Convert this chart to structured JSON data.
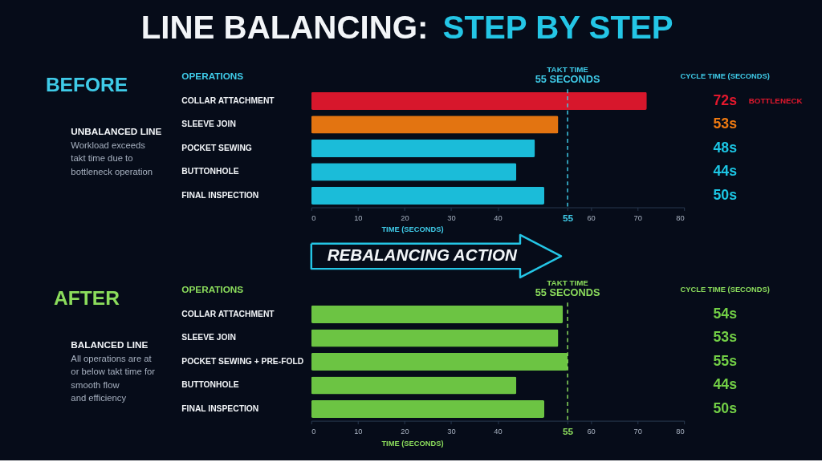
{
  "chart_data": [
    {
      "type": "other",
      "title": "LINE BALANCING: STEP BY STEP"
    },
    {
      "type": "bar",
      "orientation": "horizontal",
      "title": "BEFORE",
      "ylabel": "OPERATIONS",
      "xlabel": "TIME (SECONDS)",
      "categories": [
        "COLLAR ATTACHMENT",
        "SLEEVE JOIN",
        "POCKET SEWING",
        "BUTTONHOLE",
        "FINAL INSPECTION"
      ],
      "values": [
        72,
        53,
        48,
        44,
        50
      ],
      "colors": [
        "#e3182d",
        "#ef7a11",
        "#1cc6e4",
        "#1cc6e4",
        "#1cc6e4"
      ],
      "value_labels": [
        "72s",
        "53s",
        "48s",
        "44s",
        "50s"
      ],
      "xlim": [
        0,
        80
      ],
      "xticks": [
        0,
        10,
        20,
        30,
        40,
        55,
        60,
        70,
        80
      ],
      "ref_lines": [
        {
          "axis": "x",
          "value": 55,
          "label": "TAKT TIME\n55 SECONDS",
          "color": "#3fcbe8",
          "line_style": "dashed"
        }
      ],
      "annotations": [
        "UNBALANCED LINE",
        "Workload exceeds\ntakt time due to\nbottleneck operation",
        "CYCLE TIME (SECONDS)",
        "BOTTLENECK"
      ]
    },
    {
      "type": "other",
      "title": "REBALANCING ACTION"
    },
    {
      "type": "bar",
      "orientation": "horizontal",
      "title": "AFTER",
      "ylabel": "OPERATIONS",
      "xlabel": "TIME (SECONDS)",
      "categories": [
        "COLLAR ATTACHMENT",
        "SLEEVE JOIN",
        "POCKET SEWING + PRE-FOLD",
        "BUTTONHOLE",
        "FINAL INSPECTION"
      ],
      "values": [
        54,
        53,
        55,
        44,
        50
      ],
      "colors": [
        "#72cf46",
        "#72cf46",
        "#72cf46",
        "#72cf46",
        "#72cf46"
      ],
      "value_labels": [
        "54s",
        "53s",
        "55s",
        "44s",
        "50s"
      ],
      "xlim": [
        0,
        80
      ],
      "xticks": [
        0,
        10,
        20,
        30,
        40,
        55,
        60,
        70,
        80
      ],
      "ref_lines": [
        {
          "axis": "x",
          "value": 55,
          "label": "TAKT TIME\n55 SECONDS",
          "color": "#8bdc5c",
          "line_style": "dashed"
        }
      ],
      "annotations": [
        "BALANCED LINE",
        "All operations are at\nor below takt time for\nsmooth flow\nand efficiency",
        "CYCLE TIME (SECONDS)"
      ]
    }
  ]
}
